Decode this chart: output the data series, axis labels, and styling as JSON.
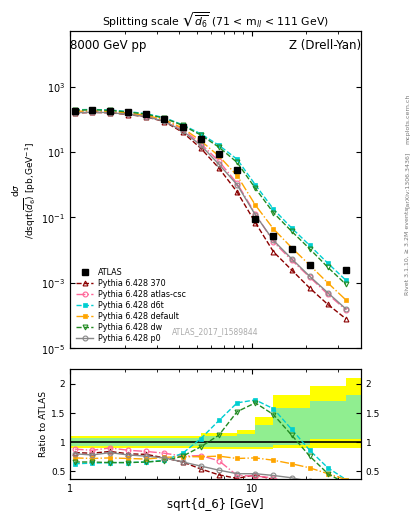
{
  "title_left": "8000 GeV pp",
  "title_right": "Z (Drell-Yan)",
  "plot_title": "Splitting scale $\\sqrt{\\overline{d_6}}$ (71 < m$_{ll}$ < 111 GeV)",
  "xlabel": "sqrt{d_6} [GeV]",
  "ylabel_main": "d$\\sigma$\n/dsqrt($\\overline{d_6}$) [pb,GeV$^{-1}$]",
  "ylabel_ratio": "Ratio to ATLAS",
  "watermark": "ATLAS_2017_I1589844",
  "xlim": [
    1,
    40
  ],
  "ylim_main": [
    1e-05,
    50000.0
  ],
  "ylim_ratio": [
    0.37,
    2.25
  ],
  "ATLAS_x": [
    1.06,
    1.32,
    1.66,
    2.09,
    2.63,
    3.31,
    4.17,
    5.25,
    6.61,
    8.32,
    10.48,
    13.18,
    16.6,
    20.89,
    33.11
  ],
  "ATLAS_y": [
    185,
    195,
    185,
    165,
    145,
    105,
    58,
    25,
    9,
    2.8,
    0.09,
    0.027,
    0.011,
    0.0035,
    0.0025
  ],
  "py370_x": [
    1.06,
    1.32,
    1.66,
    2.09,
    2.63,
    3.31,
    4.17,
    5.25,
    6.61,
    8.32,
    10.48,
    13.18,
    16.6,
    20.89,
    26.3,
    33.11
  ],
  "py370_y": [
    155,
    162,
    158,
    140,
    118,
    85,
    40,
    13,
    3.2,
    0.6,
    0.07,
    0.009,
    0.0025,
    0.0007,
    0.00022,
    8e-05
  ],
  "py370_ratio": [
    0.82,
    0.81,
    0.84,
    0.8,
    0.79,
    0.73,
    0.66,
    0.54,
    0.44,
    0.38,
    0.44,
    0.36,
    0.3,
    0.28,
    0.25,
    0.22
  ],
  "pyatlas_x": [
    1.06,
    1.32,
    1.66,
    2.09,
    2.63,
    3.31,
    4.17,
    5.25,
    6.61,
    8.32,
    10.48,
    13.18,
    16.6,
    20.89,
    26.3,
    33.11
  ],
  "pyatlas_y": [
    165,
    172,
    168,
    148,
    124,
    92,
    50,
    18,
    5.2,
    1.1,
    0.13,
    0.018,
    0.005,
    0.0015,
    0.00045,
    0.00015
  ],
  "pyatlas_ratio": [
    0.88,
    0.86,
    0.9,
    0.86,
    0.84,
    0.81,
    0.76,
    0.77,
    0.68,
    0.43,
    0.42,
    0.39,
    0.26,
    0.23,
    0.19,
    0.13
  ],
  "pyd6t_x": [
    1.06,
    1.32,
    1.66,
    2.09,
    2.63,
    3.31,
    4.17,
    5.25,
    6.61,
    8.32,
    10.48,
    13.18,
    16.6,
    20.89,
    26.3,
    33.11
  ],
  "pyd6t_y": [
    195,
    200,
    192,
    172,
    148,
    112,
    68,
    36,
    16,
    6.0,
    1.0,
    0.18,
    0.048,
    0.014,
    0.004,
    0.0012
  ],
  "pyd6t_ratio": [
    0.63,
    0.64,
    0.65,
    0.65,
    0.66,
    0.69,
    0.81,
    1.06,
    1.37,
    1.67,
    1.72,
    1.57,
    1.22,
    0.86,
    0.56,
    0.36
  ],
  "pydefault_x": [
    1.06,
    1.32,
    1.66,
    2.09,
    2.63,
    3.31,
    4.17,
    5.25,
    6.61,
    8.32,
    10.48,
    13.18,
    16.6,
    20.89,
    26.3,
    33.11
  ],
  "pydefault_y": [
    175,
    182,
    174,
    155,
    132,
    97,
    54,
    22,
    7.5,
    1.9,
    0.24,
    0.045,
    0.012,
    0.0035,
    0.001,
    0.0003
  ],
  "pydefault_ratio": [
    0.73,
    0.72,
    0.73,
    0.72,
    0.71,
    0.74,
    0.75,
    0.75,
    0.76,
    0.72,
    0.73,
    0.69,
    0.63,
    0.56,
    0.46,
    0.36
  ],
  "pydw_x": [
    1.06,
    1.32,
    1.66,
    2.09,
    2.63,
    3.31,
    4.17,
    5.25,
    6.61,
    8.32,
    10.48,
    13.18,
    16.6,
    20.89,
    26.3,
    33.11
  ],
  "pydw_y": [
    188,
    196,
    187,
    167,
    143,
    108,
    65,
    33,
    14,
    4.8,
    0.78,
    0.14,
    0.038,
    0.011,
    0.003,
    0.0009
  ],
  "pydw_ratio": [
    0.66,
    0.66,
    0.65,
    0.65,
    0.66,
    0.68,
    0.76,
    0.92,
    1.12,
    1.52,
    1.67,
    1.47,
    1.12,
    0.76,
    0.46,
    0.29
  ],
  "pyp0_x": [
    1.06,
    1.32,
    1.66,
    2.09,
    2.63,
    3.31,
    4.17,
    5.25,
    6.61,
    8.32,
    10.48,
    13.18,
    16.6,
    20.89,
    26.3,
    33.11
  ],
  "pyp0_y": [
    158,
    165,
    160,
    142,
    120,
    87,
    44,
    16,
    4.2,
    1.0,
    0.12,
    0.02,
    0.0055,
    0.0016,
    0.0005,
    0.00016
  ],
  "pyp0_ratio": [
    0.8,
    0.78,
    0.82,
    0.78,
    0.76,
    0.73,
    0.66,
    0.59,
    0.52,
    0.46,
    0.46,
    0.43,
    0.39,
    0.33,
    0.29,
    0.23
  ],
  "band_yellow_x": [
    1.0,
    3.31,
    5.25,
    8.32,
    10.48,
    13.18,
    20.89,
    33.11,
    40.0
  ],
  "band_yellow_lo": [
    0.9,
    0.9,
    0.88,
    0.88,
    0.88,
    0.9,
    0.9,
    0.9,
    0.9
  ],
  "band_yellow_hi": [
    1.1,
    1.1,
    1.15,
    1.2,
    1.42,
    1.8,
    1.95,
    2.1,
    2.1
  ],
  "band_green_x": [
    1.0,
    3.31,
    5.25,
    8.32,
    10.48,
    13.18,
    20.89,
    33.11,
    40.0
  ],
  "band_green_lo": [
    0.93,
    0.93,
    0.92,
    0.92,
    0.92,
    0.95,
    1.05,
    1.05,
    1.05
  ],
  "band_green_hi": [
    1.07,
    1.07,
    1.1,
    1.14,
    1.3,
    1.58,
    1.7,
    1.8,
    1.8
  ],
  "colors": {
    "ATLAS": "#000000",
    "py370": "#8B0000",
    "pyatlas": "#FF6699",
    "pyd6t": "#00CED1",
    "pydefault": "#FFA500",
    "pydw": "#228B22",
    "pyp0": "#888888"
  }
}
